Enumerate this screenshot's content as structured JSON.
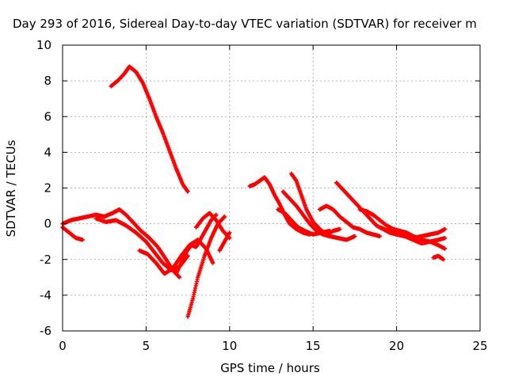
{
  "chart_data": {
    "type": "scatter",
    "title": "Day 293 of 2016, Sidereal Day-to-day VTEC variation (SDTVAR) for receiver m",
    "xlabel": "GPS time / hours",
    "ylabel": "SDTVAR / TECUs",
    "xlim": [
      0,
      25
    ],
    "ylim": [
      -6,
      10
    ],
    "x_ticks": [
      0,
      5,
      10,
      15,
      20,
      25
    ],
    "y_ticks": [
      -6,
      -4,
      -2,
      0,
      2,
      4,
      6,
      8,
      10
    ],
    "grid": true,
    "legend": "none",
    "marker_color": "#ff0000",
    "series": [
      {
        "x": [
          2.9,
          3.3,
          3.7,
          4.0,
          4.4,
          4.8,
          5.2,
          5.6,
          6.0,
          6.4,
          6.8,
          7.2,
          7.5
        ],
        "y": [
          7.7,
          8.0,
          8.4,
          8.8,
          8.5,
          7.9,
          7.0,
          6.0,
          5.1,
          4.1,
          3.1,
          2.2,
          1.8
        ]
      },
      {
        "x": [
          0.0,
          0.5,
          1.0,
          1.5,
          2.0,
          2.5,
          3.0,
          3.4
        ],
        "y": [
          0.0,
          0.2,
          0.3,
          0.4,
          0.5,
          0.4,
          0.6,
          0.8
        ]
      },
      {
        "x": [
          0.0,
          0.4,
          0.8,
          1.2
        ],
        "y": [
          -0.2,
          -0.5,
          -0.8,
          -0.9
        ]
      },
      {
        "x": [
          3.4,
          3.8,
          4.2,
          4.7,
          5.2,
          5.7,
          6.2,
          6.6,
          7.0
        ],
        "y": [
          0.8,
          0.5,
          0.1,
          -0.4,
          -0.8,
          -1.3,
          -2.0,
          -2.6,
          -3.0
        ]
      },
      {
        "x": [
          2.0,
          2.6,
          3.2,
          3.8,
          4.4,
          5.0,
          5.5,
          6.0,
          6.5,
          7.0,
          7.5
        ],
        "y": [
          0.3,
          0.1,
          0.2,
          -0.1,
          -0.5,
          -1.0,
          -1.6,
          -2.2,
          -2.6,
          -2.4,
          -1.8
        ]
      },
      {
        "x": [
          4.6,
          5.1,
          5.6,
          6.1,
          6.6,
          7.1,
          7.6,
          8.1,
          8.6,
          9.0
        ],
        "y": [
          -1.5,
          -1.7,
          -2.2,
          -2.8,
          -2.5,
          -1.8,
          -1.2,
          -0.9,
          -1.4,
          -2.2
        ]
      },
      {
        "x": [
          6.8,
          7.1,
          7.4,
          7.7,
          8.0,
          8.3,
          8.6,
          8.9,
          9.2
        ],
        "y": [
          -2.8,
          -2.2,
          -1.6,
          -1.2,
          -1.3,
          -0.8,
          -0.3,
          0.2,
          0.5
        ]
      },
      {
        "x": [
          7.5,
          7.8,
          8.1,
          8.5,
          8.9,
          9.3,
          9.7
        ],
        "y": [
          -5.2,
          -4.2,
          -3.0,
          -1.8,
          -0.8,
          0.0,
          0.4
        ]
      },
      {
        "x": [
          8.0,
          8.4,
          8.8,
          9.2,
          9.6,
          10.0
        ],
        "y": [
          -0.2,
          0.3,
          0.6,
          0.2,
          -0.4,
          -0.8
        ]
      },
      {
        "x": [
          9.4,
          9.7,
          10.0
        ],
        "y": [
          -1.5,
          -1.0,
          -0.5
        ]
      },
      {
        "x": [
          11.2,
          11.5,
          11.8,
          12.1,
          12.4,
          12.7,
          13.0,
          13.3,
          13.6,
          14.0,
          14.4,
          14.8
        ],
        "y": [
          2.1,
          2.2,
          2.4,
          2.6,
          2.2,
          1.6,
          1.1,
          0.5,
          0.0,
          -0.3,
          -0.5,
          -0.6
        ]
      },
      {
        "x": [
          13.2,
          13.6,
          14.0,
          14.4,
          14.8,
          15.2,
          15.6,
          16.0,
          16.5,
          17.0,
          17.5
        ],
        "y": [
          1.8,
          1.4,
          1.0,
          0.5,
          0.0,
          -0.4,
          -0.6,
          -0.7,
          -0.8,
          -0.9,
          -0.7
        ]
      },
      {
        "x": [
          13.7,
          14.0,
          14.3,
          14.6,
          15.0,
          15.4,
          15.8,
          16.2,
          16.6
        ],
        "y": [
          2.8,
          2.4,
          1.6,
          0.8,
          0.1,
          -0.3,
          -0.6,
          -0.4,
          -0.3
        ]
      },
      {
        "x": [
          12.9,
          13.3,
          13.7,
          14.1,
          14.5,
          15.0,
          15.5,
          16.0
        ],
        "y": [
          0.8,
          0.6,
          0.2,
          -0.2,
          -0.4,
          -0.6,
          -0.5,
          -0.4
        ]
      },
      {
        "x": [
          15.4,
          15.8,
          16.2,
          16.6,
          17.0,
          17.4,
          17.8,
          18.2,
          18.6,
          19.0
        ],
        "y": [
          0.8,
          1.0,
          0.8,
          0.4,
          0.1,
          -0.2,
          -0.3,
          -0.5,
          -0.6,
          -0.7
        ]
      },
      {
        "x": [
          16.4,
          16.8,
          17.2,
          17.6,
          18.0,
          18.4,
          18.8,
          19.2,
          19.6,
          20.0,
          20.5,
          21.0,
          21.5
        ],
        "y": [
          2.3,
          1.9,
          1.5,
          1.1,
          0.7,
          0.3,
          -0.1,
          -0.3,
          -0.5,
          -0.6,
          -0.7,
          -0.8,
          -0.9
        ]
      },
      {
        "x": [
          17.8,
          18.2,
          18.6,
          19.0,
          19.4,
          19.8,
          20.2,
          20.6,
          21.0,
          21.5,
          22.0,
          22.5,
          22.9
        ],
        "y": [
          0.8,
          0.7,
          0.5,
          0.2,
          -0.1,
          -0.3,
          -0.4,
          -0.5,
          -0.7,
          -0.9,
          -1.0,
          -1.2,
          -1.4
        ]
      },
      {
        "x": [
          19.0,
          19.5,
          20.0,
          20.5,
          21.0,
          21.5,
          22.0,
          22.5,
          22.9
        ],
        "y": [
          -0.2,
          -0.4,
          -0.5,
          -0.6,
          -0.8,
          -0.7,
          -0.6,
          -0.5,
          -0.3
        ]
      },
      {
        "x": [
          20.0,
          20.5,
          21.0,
          21.5,
          22.0,
          22.5,
          22.9
        ],
        "y": [
          -0.5,
          -0.7,
          -0.9,
          -1.1,
          -1.0,
          -0.9,
          -0.8
        ]
      },
      {
        "x": [
          22.2,
          22.5,
          22.8
        ],
        "y": [
          -1.9,
          -1.8,
          -2.0
        ]
      }
    ]
  }
}
